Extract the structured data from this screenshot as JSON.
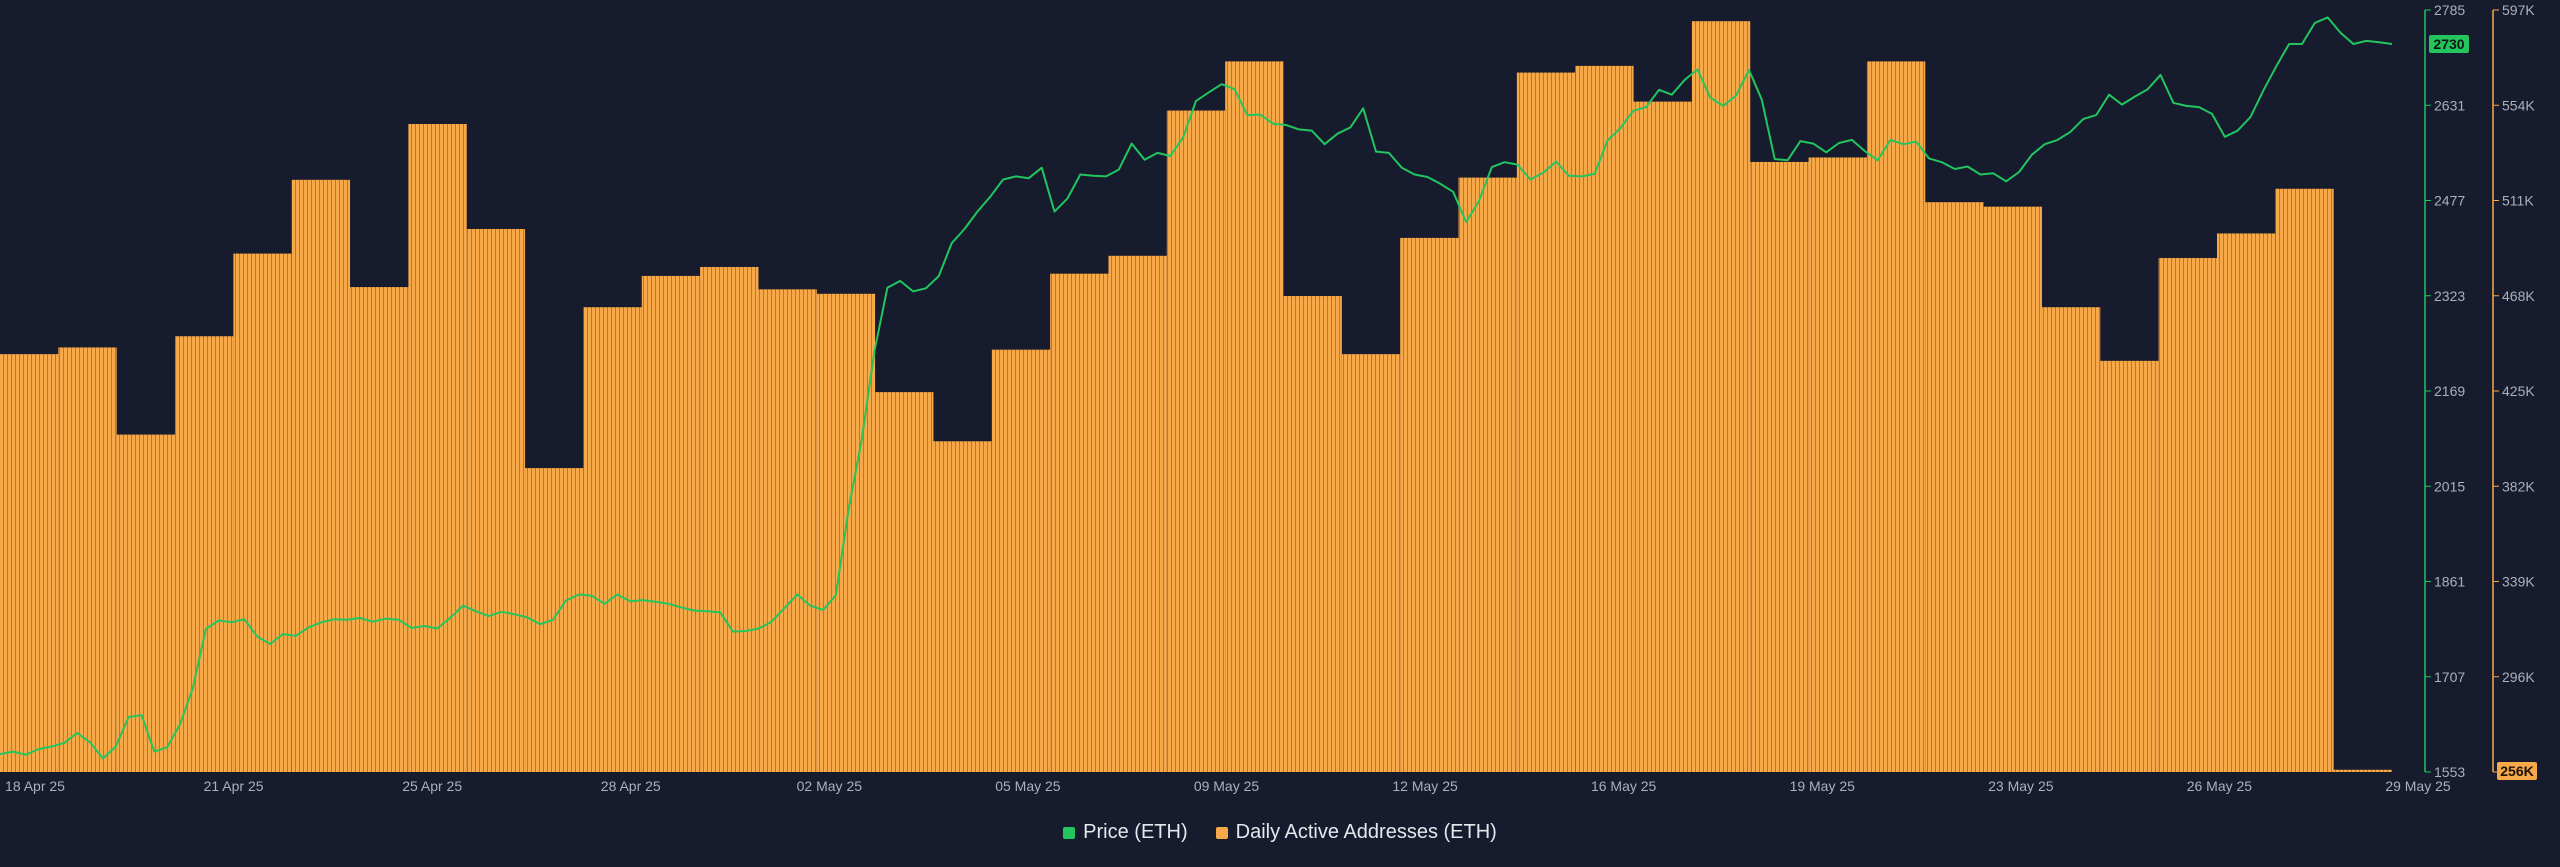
{
  "chart_data": {
    "type": "bar+line",
    "x_labels": [
      "18 Apr 25",
      "21 Apr 25",
      "25 Apr 25",
      "28 Apr 25",
      "02 May 25",
      "05 May 25",
      "09 May 25",
      "12 May 25",
      "16 May 25",
      "19 May 25",
      "23 May 25",
      "26 May 25",
      "29 May 25"
    ],
    "price_axis": {
      "ticks": [
        "2785",
        "2631",
        "2477",
        "2323",
        "2169",
        "2015",
        "1861",
        "1707",
        "1553"
      ],
      "min": 1553,
      "max": 2785,
      "current": "2730",
      "current_value": 2730
    },
    "address_axis": {
      "ticks": [
        "597K",
        "554K",
        "511K",
        "468K",
        "425K",
        "382K",
        "339K",
        "296K",
        "256K"
      ],
      "min": 256,
      "max": 597,
      "current": "256K",
      "current_value": 256
    },
    "series": [
      {
        "name": "Price (ETH)",
        "type": "line",
        "color": "#22c55e",
        "values": [
          1582,
          1586,
          1581,
          1590,
          1594,
          1600,
          1616,
          1601,
          1575,
          1594,
          1642,
          1645,
          1586,
          1593,
          1630,
          1689,
          1784,
          1798,
          1795,
          1800,
          1772,
          1760,
          1776,
          1773,
          1787,
          1795,
          1800,
          1799,
          1802,
          1796,
          1801,
          1799,
          1786,
          1789,
          1785,
          1802,
          1822,
          1813,
          1805,
          1812,
          1808,
          1803,
          1792,
          1799,
          1830,
          1840,
          1838,
          1825,
          1840,
          1829,
          1831,
          1828,
          1825,
          1819,
          1814,
          1813,
          1811,
          1780,
          1781,
          1785,
          1796,
          1818,
          1840,
          1822,
          1815,
          1839,
          1980,
          2089,
          2234,
          2336,
          2347,
          2330,
          2335,
          2355,
          2408,
          2431,
          2459,
          2483,
          2511,
          2516,
          2513,
          2530,
          2459,
          2480,
          2519,
          2517,
          2516,
          2527,
          2569,
          2543,
          2554,
          2549,
          2579,
          2638,
          2652,
          2665,
          2657,
          2615,
          2616,
          2601,
          2599,
          2592,
          2590,
          2568,
          2585,
          2595,
          2626,
          2556,
          2554,
          2530,
          2519,
          2515,
          2504,
          2491,
          2442,
          2476,
          2531,
          2539,
          2535,
          2511,
          2522,
          2540,
          2517,
          2516,
          2520,
          2574,
          2594,
          2622,
          2628,
          2656,
          2648,
          2672,
          2689,
          2643,
          2630,
          2647,
          2688,
          2640,
          2544,
          2542,
          2573,
          2569,
          2555,
          2570,
          2575,
          2557,
          2542,
          2575,
          2568,
          2572,
          2545,
          2539,
          2528,
          2532,
          2519,
          2521,
          2508,
          2523,
          2551,
          2568,
          2575,
          2588,
          2609,
          2615,
          2648,
          2632,
          2645,
          2657,
          2680,
          2635,
          2630,
          2628,
          2617,
          2580,
          2590,
          2612,
          2655,
          2694,
          2730,
          2730,
          2764,
          2773,
          2748,
          2730,
          2735,
          2733,
          2730
        ]
      },
      {
        "name": "Daily Active Addresses (ETH)",
        "type": "bar",
        "color": "#f7a94a",
        "values": [
          443,
          446,
          407,
          451,
          488,
          521,
          473,
          546,
          499,
          392,
          464,
          478,
          482,
          472,
          470,
          426,
          404,
          445,
          479,
          487,
          552,
          574,
          469,
          443,
          495,
          522,
          569,
          572,
          556,
          592,
          529,
          531,
          574,
          511,
          509,
          464,
          440,
          486,
          497,
          517,
          257
        ]
      }
    ],
    "legend": [
      "Price (ETH)",
      "Daily Active Addresses (ETH)"
    ],
    "legend_position": "bottom-center",
    "grid": false
  }
}
